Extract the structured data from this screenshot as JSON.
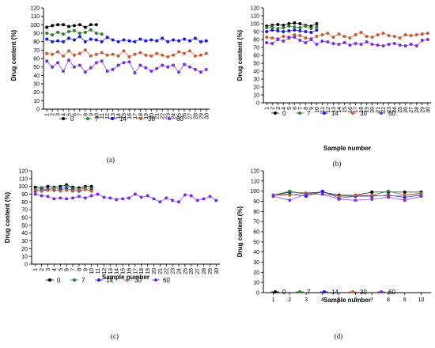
{
  "figure_panels": [
    "a",
    "b",
    "c",
    "d"
  ],
  "chart_data": [
    {
      "panel": "a",
      "type": "line",
      "label": "(a)",
      "xlabel": "",
      "ylabel": "Drug content (%)",
      "ylim": [
        0,
        120
      ],
      "yticks": [
        0,
        10,
        20,
        30,
        40,
        50,
        60,
        70,
        80,
        90,
        100,
        110,
        120
      ],
      "xticks": [
        1,
        2,
        3,
        4,
        5,
        6,
        7,
        8,
        9,
        10,
        11,
        12,
        13,
        14,
        15,
        16,
        17,
        18,
        19,
        20,
        21,
        22,
        23,
        24,
        25,
        26,
        27,
        28,
        29,
        30
      ],
      "legend": "inside-lower",
      "series": [
        {
          "name": "0",
          "color": "#000000",
          "x": [
            1,
            2,
            3,
            4,
            5,
            6,
            7,
            8,
            9,
            10
          ],
          "values": [
            97,
            99,
            100,
            100,
            98,
            99,
            100,
            97,
            100,
            100
          ]
        },
        {
          "name": "7",
          "color": "#2e7d32",
          "x": [
            1,
            2,
            3,
            4,
            5,
            6,
            7,
            8,
            9,
            10,
            11
          ],
          "values": [
            90,
            88,
            91,
            89,
            92,
            93,
            90,
            91,
            94,
            90,
            89
          ]
        },
        {
          "name": "14",
          "color": "#1a1adb",
          "x": [
            1,
            2,
            3,
            4,
            5,
            6,
            7,
            8,
            9,
            10,
            11,
            12,
            13,
            14,
            15,
            16,
            17,
            18,
            19,
            20,
            21,
            22,
            23,
            24,
            25,
            26,
            27,
            28,
            29,
            30
          ],
          "values": [
            83,
            80,
            81,
            80,
            84,
            82,
            86,
            80,
            83,
            82,
            80,
            85,
            82,
            80,
            82,
            81,
            80,
            83,
            81,
            82,
            81,
            84,
            80,
            82,
            81,
            83,
            81,
            84,
            80,
            81
          ]
        },
        {
          "name": "30",
          "color": "#c0603a",
          "x": [
            1,
            2,
            3,
            4,
            5,
            6,
            7,
            8,
            9,
            10,
            11,
            12,
            13,
            14,
            15,
            16,
            17,
            18,
            19,
            20,
            21,
            22,
            23,
            24,
            25,
            26,
            27,
            28,
            29,
            30
          ],
          "values": [
            66,
            65,
            68,
            63,
            69,
            64,
            66,
            70,
            63,
            65,
            67,
            64,
            65,
            63,
            69,
            62,
            65,
            67,
            64,
            63,
            66,
            64,
            62,
            64,
            68,
            66,
            69,
            63,
            64,
            66
          ]
        },
        {
          "name": "60",
          "color": "#7b2fd6",
          "x": [
            1,
            2,
            3,
            4,
            5,
            6,
            7,
            8,
            9,
            10,
            11,
            12,
            13,
            14,
            15,
            16,
            17,
            18,
            19,
            20,
            21,
            22,
            23,
            24,
            25,
            26,
            27,
            28,
            29,
            30
          ],
          "values": [
            57,
            50,
            55,
            45,
            58,
            50,
            52,
            44,
            49,
            55,
            57,
            45,
            47,
            52,
            55,
            56,
            43,
            52,
            49,
            45,
            48,
            52,
            50,
            52,
            44,
            53,
            50,
            47,
            44,
            47
          ]
        }
      ]
    },
    {
      "panel": "b",
      "type": "line",
      "label": "(b)",
      "xlabel": "Sample number",
      "ylabel": "Drug content (%)",
      "ylim": [
        0,
        120
      ],
      "yticks": [
        0,
        10,
        20,
        30,
        40,
        50,
        60,
        70,
        80,
        90,
        100,
        110,
        120
      ],
      "xticks": [
        1,
        2,
        3,
        4,
        5,
        6,
        7,
        8,
        9,
        10,
        11,
        12,
        13,
        14,
        15,
        16,
        17,
        18,
        19,
        20,
        21,
        22,
        23,
        24,
        25,
        26,
        27,
        28,
        29,
        30
      ],
      "legend": "inside-lower",
      "series": [
        {
          "name": "0",
          "color": "#000000",
          "x": [
            1,
            2,
            3,
            4,
            5,
            6,
            7,
            8,
            9,
            10
          ],
          "values": [
            97,
            98,
            99,
            98,
            100,
            101,
            100,
            98,
            97,
            100
          ]
        },
        {
          "name": "7",
          "color": "#2e7d32",
          "x": [
            1,
            2,
            3,
            4,
            5,
            6,
            7,
            8,
            9,
            10
          ],
          "values": [
            95,
            96,
            94,
            95,
            97,
            96,
            95,
            97,
            94,
            96
          ]
        },
        {
          "name": "14",
          "color": "#1a1adb",
          "x": [
            1,
            2,
            3,
            4,
            5,
            6,
            7,
            8,
            9,
            10
          ],
          "values": [
            90,
            92,
            91,
            90,
            91,
            92,
            91,
            90,
            89,
            92
          ]
        },
        {
          "name": "30",
          "color": "#c0603a",
          "x": [
            1,
            2,
            3,
            4,
            5,
            6,
            7,
            8,
            9,
            10,
            11,
            12,
            13,
            14,
            15,
            16,
            17,
            18,
            19,
            20,
            21,
            22,
            23,
            24,
            25,
            26,
            27,
            28,
            29,
            30
          ],
          "values": [
            83,
            82,
            81,
            84,
            83,
            86,
            85,
            82,
            81,
            84,
            86,
            88,
            83,
            87,
            84,
            82,
            86,
            89,
            84,
            83,
            86,
            88,
            85,
            84,
            82,
            86,
            85,
            86,
            87,
            88
          ]
        },
        {
          "name": "60",
          "color": "#7b2fd6",
          "x": [
            1,
            2,
            3,
            4,
            5,
            6,
            7,
            8,
            9,
            10,
            11,
            12,
            13,
            14,
            15,
            16,
            17,
            18,
            19,
            20,
            21,
            22,
            23,
            24,
            25,
            26,
            27,
            28,
            29,
            30
          ],
          "values": [
            76,
            75,
            80,
            78,
            82,
            83,
            79,
            76,
            80,
            74,
            78,
            77,
            75,
            74,
            76,
            73,
            75,
            74,
            77,
            74,
            73,
            72,
            74,
            75,
            73,
            72,
            74,
            72,
            79,
            80
          ]
        }
      ]
    },
    {
      "panel": "c",
      "type": "line",
      "label": "(c)",
      "xlabel": "Sample number",
      "ylabel": "Drug content (%)",
      "ylim": [
        0,
        120
      ],
      "yticks": [
        0,
        10,
        20,
        30,
        40,
        50,
        60,
        70,
        80,
        90,
        100,
        110,
        120
      ],
      "xticks": [
        1,
        2,
        3,
        4,
        5,
        6,
        7,
        8,
        9,
        10,
        11,
        12,
        13,
        14,
        15,
        16,
        17,
        18,
        19,
        20,
        21,
        22,
        23,
        24,
        25,
        26,
        27,
        28,
        29,
        30
      ],
      "legend": "inside-lower",
      "series": [
        {
          "name": "0",
          "color": "#000000",
          "x": [
            1,
            2,
            3,
            4,
            5,
            6,
            7,
            8,
            9,
            10
          ],
          "values": [
            99,
            98,
            100,
            99,
            100,
            102,
            99,
            98,
            100,
            100
          ]
        },
        {
          "name": "7",
          "color": "#2e7d32",
          "x": [
            1,
            2,
            3,
            4,
            5,
            6,
            7,
            8,
            9,
            10
          ],
          "values": [
            96,
            97,
            96,
            98,
            97,
            100,
            97,
            96,
            98,
            97
          ]
        },
        {
          "name": "14",
          "color": "#1a1adb",
          "x": [
            1,
            2,
            3,
            4,
            5,
            6,
            7,
            8,
            9,
            10
          ],
          "values": [
            94,
            95,
            96,
            95,
            96,
            97,
            95,
            94,
            96,
            95
          ]
        },
        {
          "name": "30",
          "color": "#c0603a",
          "x": [
            1,
            2,
            3,
            4,
            5,
            6,
            7,
            8,
            9,
            10
          ],
          "values": [
            95,
            94,
            95,
            96,
            94,
            95,
            94,
            95,
            96,
            94
          ]
        },
        {
          "name": "60",
          "color": "#7b2fd6",
          "x": [
            1,
            2,
            3,
            4,
            5,
            6,
            7,
            8,
            9,
            10,
            11,
            12,
            13,
            14,
            15,
            16,
            17,
            18,
            19,
            20,
            21,
            22,
            23,
            24,
            25,
            26,
            27,
            28,
            29,
            30
          ],
          "values": [
            90,
            88,
            87,
            84,
            85,
            84,
            85,
            87,
            85,
            88,
            90,
            86,
            85,
            83,
            84,
            85,
            90,
            86,
            88,
            84,
            80,
            85,
            82,
            80,
            89,
            88,
            82,
            84,
            87,
            82
          ]
        }
      ]
    },
    {
      "panel": "d",
      "type": "line",
      "label": "(d)",
      "xlabel": "Sample number",
      "ylabel": "Drug content (%)",
      "ylim": [
        0,
        120
      ],
      "yticks": [
        0,
        10,
        20,
        30,
        40,
        50,
        60,
        70,
        80,
        90,
        100,
        110,
        120
      ],
      "xticks": [
        1,
        2,
        3,
        4,
        5,
        6,
        7,
        8,
        9,
        10
      ],
      "legend": "inside-lower",
      "series": [
        {
          "name": "0",
          "color": "#000000",
          "x": [
            1,
            2,
            3,
            4,
            5,
            6,
            7,
            8,
            9,
            10
          ],
          "values": [
            96,
            99,
            98,
            99,
            96,
            96,
            99,
            99,
            99,
            99
          ]
        },
        {
          "name": "7",
          "color": "#2e7d32",
          "x": [
            1,
            2,
            3,
            4,
            5,
            6,
            7,
            8,
            9,
            10
          ],
          "values": [
            96,
            100,
            97,
            99,
            95,
            95,
            96,
            100,
            96,
            98
          ]
        },
        {
          "name": "14",
          "color": "#1a1adb",
          "x": [
            1,
            2,
            3,
            4,
            5,
            6,
            7,
            8,
            9,
            10
          ],
          "values": [
            96,
            97,
            95,
            100,
            93,
            95,
            95,
            96,
            94,
            96
          ]
        },
        {
          "name": "30",
          "color": "#c0603a",
          "x": [
            1,
            2,
            3,
            4,
            5,
            6,
            7,
            8,
            9,
            10
          ],
          "values": [
            96,
            96,
            98,
            97,
            95,
            96,
            96,
            95,
            96,
            97
          ]
        },
        {
          "name": "60",
          "color": "#7b2fd6",
          "x": [
            1,
            2,
            3,
            4,
            5,
            6,
            7,
            8,
            9,
            10
          ],
          "values": [
            95,
            91,
            97,
            97,
            92,
            91,
            92,
            94,
            91,
            95
          ]
        }
      ]
    }
  ]
}
